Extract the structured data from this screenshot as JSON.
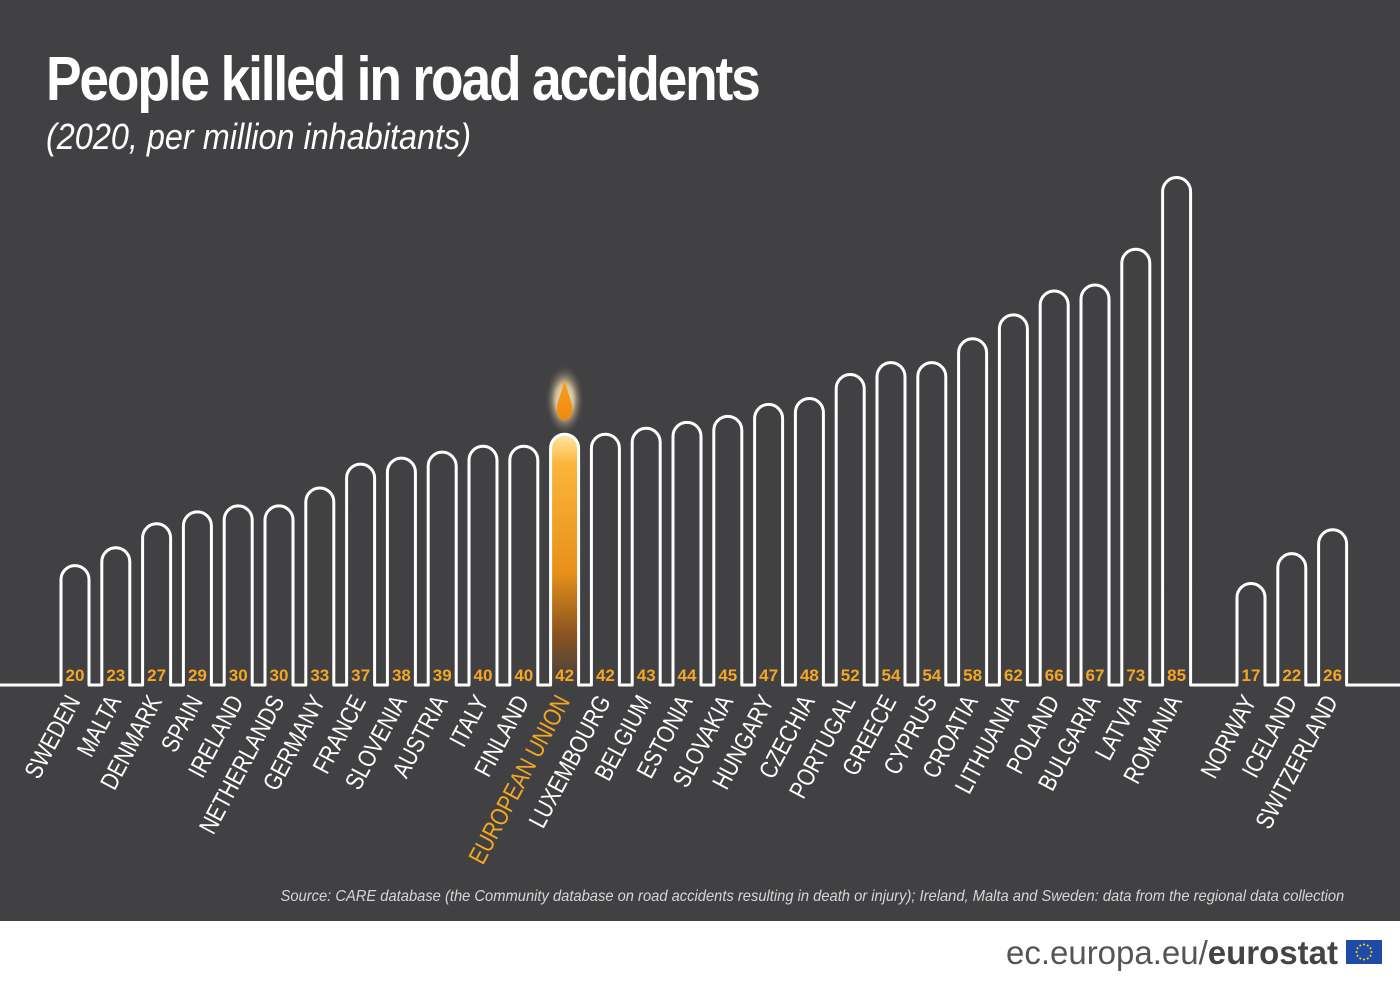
{
  "header": {
    "title": "People killed in road accidents",
    "subtitle": "(2020, per million inhabitants)"
  },
  "source": "Source: CARE database (the Community database on road accidents resulting in death or injury); Ireland, Malta and Sweden: data from the regional data collection",
  "footer": {
    "url_prefix": "ec.europa.eu/",
    "brand": "eurostat",
    "flag_icon": "eu-flag-icon"
  },
  "colors": {
    "background": "#414143",
    "outline": "#ffffff",
    "highlight": "#f5a623",
    "value_text": "#f5a623"
  },
  "chart_data": {
    "type": "bar",
    "title": "People killed in road accidents",
    "subtitle": "(2020, per million inhabitants)",
    "highlight": "EUROPEAN UNION",
    "groups": [
      {
        "categories": [
          "SWEDEN",
          "MALTA",
          "DENMARK",
          "SPAIN",
          "IRELAND",
          "NETHERLANDS",
          "GERMANY",
          "FRANCE",
          "SLOVENIA",
          "AUSTRIA",
          "ITALY",
          "FINLAND",
          "EUROPEAN UNION",
          "LUXEMBOURG",
          "BELGIUM",
          "ESTONIA",
          "SLOVAKIA",
          "HUNGARY",
          "CZECHIA",
          "PORTUGAL",
          "GREECE",
          "CYPRUS",
          "CROATIA",
          "LITHUANIA",
          "POLAND",
          "BULGARIA",
          "LATVIA",
          "ROMANIA"
        ],
        "values": [
          20,
          23,
          27,
          29,
          30,
          30,
          33,
          37,
          38,
          39,
          40,
          40,
          42,
          42,
          43,
          44,
          45,
          47,
          48,
          52,
          54,
          54,
          58,
          62,
          66,
          67,
          73,
          85
        ]
      },
      {
        "categories": [
          "NORWAY",
          "ICELAND",
          "SWITZERLAND"
        ],
        "values": [
          17,
          22,
          26
        ]
      }
    ]
  }
}
